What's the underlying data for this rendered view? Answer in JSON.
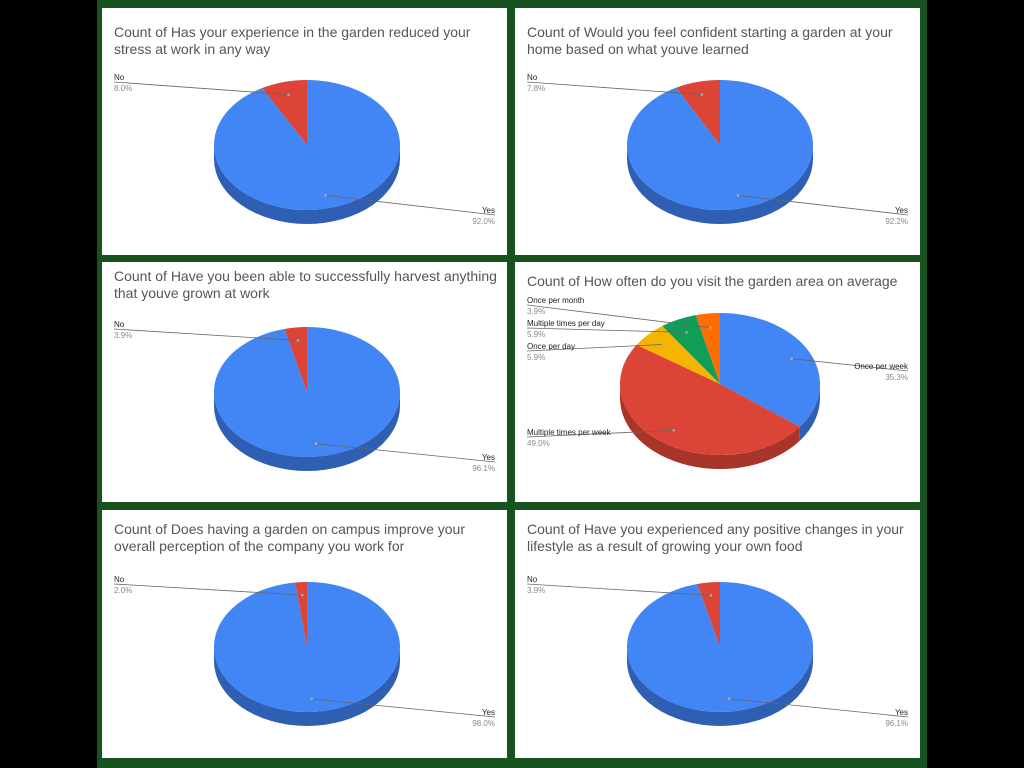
{
  "colors": {
    "blue": "#4285f4",
    "blue_dark": "#2f5fb3",
    "red": "#db4437",
    "red_dark": "#a8342a",
    "yellow": "#f4b400",
    "yellow_dark": "#bb8a00",
    "green": "#0f9d58",
    "green_dark": "#0b7442",
    "orange": "#ff6d00",
    "orange_dark": "#c25300",
    "frame": "#17521f"
  },
  "chart_data": [
    {
      "type": "pie",
      "title": "Count of Has your experience in the garden reduced your stress at work in any way",
      "slices": [
        {
          "label": "Yes",
          "value": 92.0,
          "pct": "92.0%",
          "color": "blue"
        },
        {
          "label": "No",
          "value": 8.0,
          "pct": "8.0%",
          "color": "red"
        }
      ]
    },
    {
      "type": "pie",
      "title": "Count of Would you feel confident starting a garden at your home based on what youve learned",
      "slices": [
        {
          "label": "Yes",
          "value": 92.2,
          "pct": "92.2%",
          "color": "blue"
        },
        {
          "label": "No",
          "value": 7.8,
          "pct": "7.8%",
          "color": "red"
        }
      ]
    },
    {
      "type": "pie",
      "title": "Count of Have you been able to successfully harvest anything that youve grown at work",
      "slices": [
        {
          "label": "Yes",
          "value": 96.1,
          "pct": "96.1%",
          "color": "blue"
        },
        {
          "label": "No",
          "value": 3.9,
          "pct": "3.9%",
          "color": "red"
        }
      ]
    },
    {
      "type": "pie",
      "title": "Count of How often do you visit the garden area on average",
      "slices": [
        {
          "label": "Once per week",
          "value": 35.3,
          "pct": "35.3%",
          "color": "blue"
        },
        {
          "label": "Multiple times per week",
          "value": 49.0,
          "pct": "49.0%",
          "color": "red"
        },
        {
          "label": "Once per day",
          "value": 5.9,
          "pct": "5.9%",
          "color": "yellow"
        },
        {
          "label": "Multiple times per day",
          "value": 5.9,
          "pct": "5.9%",
          "color": "green"
        },
        {
          "label": "Once per month",
          "value": 3.9,
          "pct": "3.9%",
          "color": "orange"
        }
      ]
    },
    {
      "type": "pie",
      "title": "Count of Does having a garden on campus improve your overall perception of the company you work for",
      "slices": [
        {
          "label": "Yes",
          "value": 98.0,
          "pct": "98.0%",
          "color": "blue"
        },
        {
          "label": "No",
          "value": 2.0,
          "pct": "2.0%",
          "color": "red"
        }
      ]
    },
    {
      "type": "pie",
      "title": "Count of Have you experienced any positive changes in your lifestyle as a result of growing your own food",
      "slices": [
        {
          "label": "Yes",
          "value": 96.1,
          "pct": "96.1%",
          "color": "blue"
        },
        {
          "label": "No",
          "value": 3.9,
          "pct": "3.9%",
          "color": "red"
        }
      ]
    }
  ]
}
